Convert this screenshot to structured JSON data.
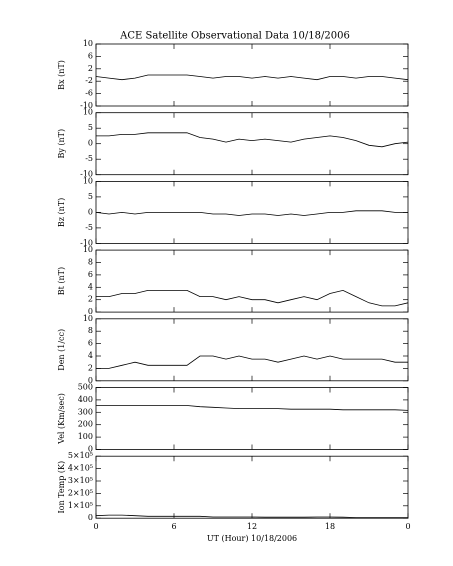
{
  "chart_data": [
    {
      "type": "line",
      "title": "ACE Satellite Observational Data   10/18/2006",
      "y_label": "Bx (nT)",
      "x": [
        0,
        1,
        2,
        3,
        4,
        5,
        6,
        7,
        8,
        9,
        10,
        11,
        12,
        13,
        14,
        15,
        16,
        17,
        18,
        19,
        20,
        21,
        22,
        23,
        24
      ],
      "values": [
        -0.5,
        -1,
        -1.5,
        -1,
        0,
        0,
        0,
        0,
        -0.5,
        -1,
        -0.5,
        -0.5,
        -1,
        -0.5,
        -1,
        -0.5,
        -1,
        -1.5,
        -0.5,
        -0.5,
        -1,
        -0.5,
        -0.5,
        -1,
        -1.5
      ],
      "ylim": [
        -10,
        10
      ],
      "yticks": [
        -10,
        -6,
        -2,
        2,
        6,
        10
      ],
      "xlim": [
        0,
        24
      ],
      "color": "#000000"
    },
    {
      "type": "line",
      "y_label": "By (nT)",
      "x": [
        0,
        1,
        2,
        3,
        4,
        5,
        6,
        7,
        8,
        9,
        10,
        11,
        12,
        13,
        14,
        15,
        16,
        17,
        18,
        19,
        20,
        21,
        22,
        23,
        24
      ],
      "values": [
        2.5,
        2.5,
        3,
        3,
        3.5,
        3.5,
        3.5,
        3.5,
        2,
        1.5,
        0.5,
        1.5,
        1,
        1.5,
        1,
        0.5,
        1.5,
        2,
        2.5,
        2,
        1,
        -0.5,
        -1,
        0,
        0.5
      ],
      "ylim": [
        -10,
        10
      ],
      "yticks": [
        -10,
        -5,
        0,
        5,
        10
      ],
      "xlim": [
        0,
        24
      ],
      "color": "#000000"
    },
    {
      "type": "line",
      "y_label": "Bz (nT)",
      "x": [
        0,
        1,
        2,
        3,
        4,
        5,
        6,
        7,
        8,
        9,
        10,
        11,
        12,
        13,
        14,
        15,
        16,
        17,
        18,
        19,
        20,
        21,
        22,
        23,
        24
      ],
      "values": [
        0,
        -0.5,
        0,
        -0.5,
        0,
        0,
        0,
        0,
        0,
        -0.5,
        -0.5,
        -1,
        -0.5,
        -0.5,
        -1,
        -0.5,
        -1,
        -0.5,
        0,
        0,
        0.5,
        0.5,
        0.5,
        0,
        0
      ],
      "ylim": [
        -10,
        10
      ],
      "yticks": [
        -10,
        -5,
        0,
        5,
        10
      ],
      "xlim": [
        0,
        24
      ],
      "color": "#000000"
    },
    {
      "type": "line",
      "y_label": "Bt (nT)",
      "x": [
        0,
        1,
        2,
        3,
        4,
        5,
        6,
        7,
        8,
        9,
        10,
        11,
        12,
        13,
        14,
        15,
        16,
        17,
        18,
        19,
        20,
        21,
        22,
        23,
        24
      ],
      "values": [
        2.5,
        2.5,
        3,
        3,
        3.5,
        3.5,
        3.5,
        3.5,
        2.5,
        2.5,
        2,
        2.5,
        2,
        2,
        1.5,
        2,
        2.5,
        2,
        3,
        3.5,
        2.5,
        1.5,
        1,
        1,
        1.5
      ],
      "ylim": [
        0,
        10
      ],
      "yticks": [
        0,
        2,
        4,
        6,
        8,
        10
      ],
      "xlim": [
        0,
        24
      ],
      "color": "#000000"
    },
    {
      "type": "line",
      "y_label": "Den (1/cc)",
      "x": [
        0,
        1,
        2,
        3,
        4,
        5,
        6,
        7,
        8,
        9,
        10,
        11,
        12,
        13,
        14,
        15,
        16,
        17,
        18,
        19,
        20,
        21,
        22,
        23,
        24
      ],
      "values": [
        2,
        2,
        2.5,
        3,
        2.5,
        2.5,
        2.5,
        2.5,
        4,
        4,
        3.5,
        4,
        3.5,
        3.5,
        3,
        3.5,
        4,
        3.5,
        4,
        3.5,
        3.5,
        3.5,
        3.5,
        3,
        3
      ],
      "ylim": [
        0,
        10
      ],
      "yticks": [
        0,
        2,
        4,
        6,
        8,
        10
      ],
      "xlim": [
        0,
        24
      ],
      "color": "#000000"
    },
    {
      "type": "line",
      "y_label": "Vel (Km/sec)",
      "x": [
        0,
        1,
        2,
        3,
        4,
        5,
        6,
        7,
        8,
        9,
        10,
        11,
        12,
        13,
        14,
        15,
        16,
        17,
        18,
        19,
        20,
        21,
        22,
        23,
        24
      ],
      "values": [
        355,
        355,
        355,
        355,
        355,
        355,
        355,
        355,
        345,
        340,
        335,
        330,
        330,
        330,
        330,
        325,
        325,
        325,
        325,
        320,
        320,
        320,
        320,
        320,
        315
      ],
      "ylim": [
        0,
        500
      ],
      "yticks": [
        0,
        100,
        200,
        300,
        400,
        500
      ],
      "xlim": [
        0,
        24
      ],
      "color": "#000000"
    },
    {
      "type": "line",
      "y_label": "Ion Temp (K)",
      "x": [
        0,
        1,
        2,
        3,
        4,
        5,
        6,
        7,
        8,
        9,
        10,
        11,
        12,
        13,
        14,
        15,
        16,
        17,
        18,
        19,
        20,
        21,
        22,
        23,
        24
      ],
      "values": [
        20000,
        25000,
        25000,
        20000,
        15000,
        15000,
        15000,
        15000,
        15000,
        10000,
        10000,
        10000,
        10000,
        8000,
        8000,
        8000,
        8000,
        10000,
        10000,
        8000,
        5000,
        5000,
        5000,
        5000,
        5000
      ],
      "ylim": [
        0,
        500000
      ],
      "yticks": [
        0,
        {
          "value": 100000,
          "label": "1×10⁵"
        },
        {
          "value": 200000,
          "label": "2×10⁵"
        },
        {
          "value": 300000,
          "label": "3×10⁵"
        },
        {
          "value": 400000,
          "label": "4×10⁵"
        },
        {
          "value": 500000,
          "label": "5×10⁵"
        }
      ],
      "xlim": [
        0,
        24
      ],
      "xticks": [
        0,
        6,
        12,
        18,
        {
          "value": 24,
          "label": "0"
        }
      ],
      "x_label": "UT (Hour)   10/18/2006",
      "color": "#000000"
    }
  ]
}
